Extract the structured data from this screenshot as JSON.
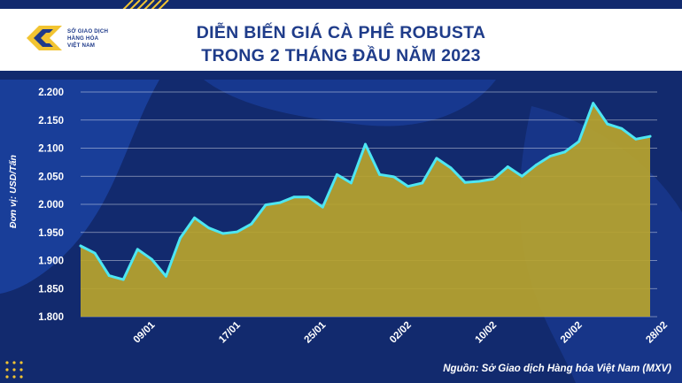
{
  "header": {
    "logo_lines": [
      "SỞ GIAO DỊCH",
      "HÀNG HÓA",
      "VIỆT NAM"
    ],
    "title_line1": "DIỄN BIẾN GIÁ CÀ PHÊ ROBUSTA",
    "title_line2": "TRONG 2 THÁNG ĐẦU NĂM 2023"
  },
  "footer": {
    "source": "Nguồn: Sở Giao dịch Hàng hóa Việt Nam (MXV)"
  },
  "colors": {
    "background": "#122a6e",
    "background_shape": "#1c46a8",
    "line": "#4ee6f2",
    "area_fill": "#b9a42d",
    "header_text": "#1f3c8a",
    "accent_yellow": "#f2c431"
  },
  "chart_data": {
    "type": "area",
    "title": "DIỄN BIẾN GIÁ CÀ PHÊ ROBUSTA TRONG 2 THÁNG ĐẦU NĂM 2023",
    "ylabel": "Đơn vị: USD/Tấn",
    "xlabel": "",
    "ylim": [
      1800,
      2200
    ],
    "y_ticks": [
      "1.800",
      "1.850",
      "1.900",
      "1.950",
      "2.000",
      "2.050",
      "2.100",
      "2.150",
      "2.200"
    ],
    "x_tick_labels": [
      {
        "label": "09/01",
        "index": 5
      },
      {
        "label": "17/01",
        "index": 11
      },
      {
        "label": "25/01",
        "index": 17
      },
      {
        "label": "02/02",
        "index": 23
      },
      {
        "label": "10/02",
        "index": 29
      },
      {
        "label": "20/02",
        "index": 35
      },
      {
        "label": "28/02",
        "index": 41
      }
    ],
    "grid": true,
    "series": [
      {
        "values": [
          1926,
          1913,
          1873,
          1866,
          1920,
          1902,
          1872,
          1940,
          1976,
          1958,
          1948,
          1951,
          1965,
          1999,
          2003,
          2013,
          2013,
          1995,
          2053,
          2038,
          2107,
          2053,
          2049,
          2032,
          2038,
          2082,
          2065,
          2039,
          2041,
          2045,
          2067,
          2050,
          2070,
          2086,
          2093,
          2112,
          2180,
          2143,
          2135,
          2116,
          2121
        ]
      }
    ]
  }
}
